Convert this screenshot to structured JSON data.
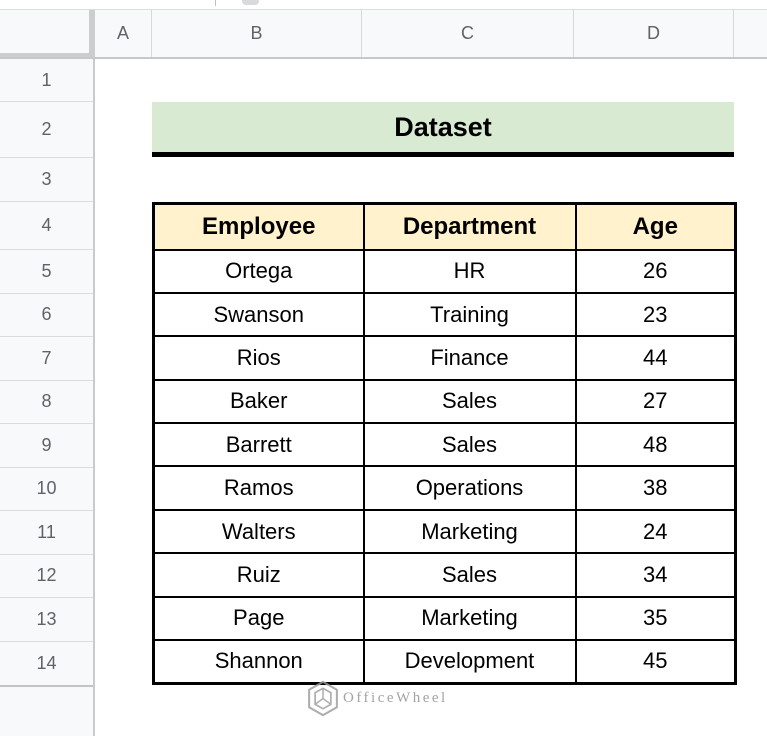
{
  "sheet": {
    "column_headers": [
      "A",
      "B",
      "C",
      "D"
    ],
    "row_numbers": [
      "1",
      "2",
      "3",
      "4",
      "5",
      "6",
      "7",
      "8",
      "9",
      "10",
      "11",
      "12",
      "13",
      "14"
    ],
    "title_cell": {
      "text": "Dataset"
    },
    "table": {
      "headers": [
        "Employee",
        "Department",
        "Age"
      ],
      "rows": [
        [
          "Ortega",
          "HR",
          "26"
        ],
        [
          "Swanson",
          "Training",
          "23"
        ],
        [
          "Rios",
          "Finance",
          "44"
        ],
        [
          "Baker",
          "Sales",
          "27"
        ],
        [
          "Barrett",
          "Sales",
          "48"
        ],
        [
          "Ramos",
          "Operations",
          "38"
        ],
        [
          "Walters",
          "Marketing",
          "24"
        ],
        [
          "Ruiz",
          "Sales",
          "34"
        ],
        [
          "Page",
          "Marketing",
          "35"
        ],
        [
          "Shannon",
          "Development",
          "45"
        ]
      ]
    },
    "watermark": {
      "text": "OfficeWheel",
      "icon": "officewheel-hexagon-logo"
    },
    "colors": {
      "title_bg": "#d9ead3",
      "table_header_bg": "#fff2cc",
      "header_bg": "#f8f9fa",
      "header_text": "#5f6368",
      "table_border": "#000000",
      "watermark_gray": "#8d8f92"
    }
  }
}
